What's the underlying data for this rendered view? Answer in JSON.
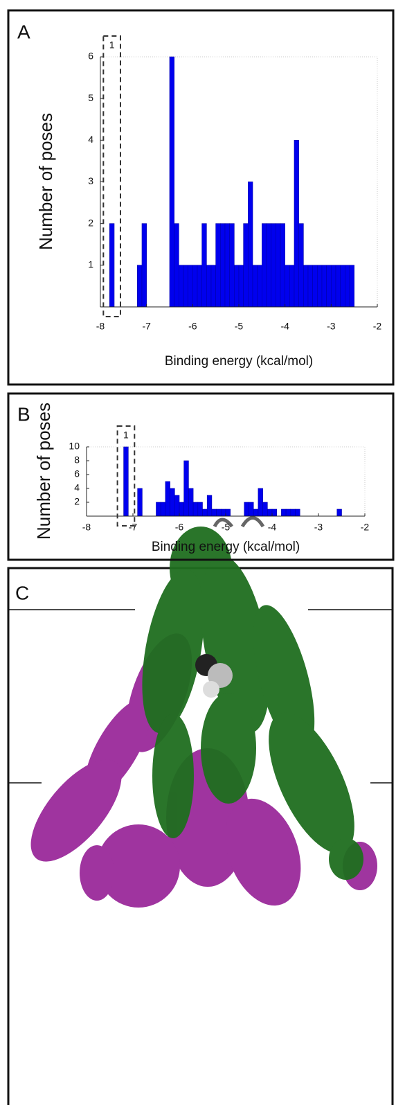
{
  "chart_data": [
    {
      "type": "histogram",
      "panel_label": "A",
      "xlabel": "Binding energy (kcal/mol)",
      "ylabel": "Number of poses",
      "annotation": "1",
      "color": "#0000ee",
      "bins": [
        -7.8,
        -7.7,
        -7.6,
        -7.5,
        -7.4,
        -7.3,
        -7.2,
        -7.1,
        -7.0,
        -6.9,
        -6.8,
        -6.7,
        -6.6,
        -6.5,
        -6.4,
        -6.3,
        -6.2,
        -6.1,
        -6.0,
        -5.9,
        -5.8,
        -5.7,
        -5.6,
        -5.5,
        -5.4,
        -5.3,
        -5.2,
        -5.1,
        -5.0,
        -4.9,
        -4.8,
        -4.7,
        -4.6,
        -4.5,
        -4.4,
        -4.3,
        -4.2,
        -4.1,
        -4.0,
        -3.9,
        -3.8,
        -3.7,
        -3.6,
        -3.5,
        -3.4,
        -3.3,
        -3.2,
        -3.1,
        -3.0,
        -2.9,
        -2.8,
        -2.7,
        -2.6,
        -2.5
      ],
      "values": [
        2,
        0,
        0,
        0,
        0,
        0,
        1,
        2,
        0,
        0,
        0,
        0,
        0,
        6,
        2,
        1,
        1,
        1,
        1,
        1,
        2,
        1,
        1,
        2,
        2,
        2,
        2,
        1,
        1,
        2,
        3,
        1,
        1,
        2,
        2,
        2,
        2,
        2,
        1,
        1,
        4,
        2,
        1,
        1,
        1,
        1,
        1,
        1,
        1,
        1,
        1,
        1,
        1
      ],
      "xlim": [
        -8,
        -2
      ],
      "xticks": [
        -8,
        -7,
        -6,
        -5,
        -4,
        -3,
        -2
      ],
      "ylim": [
        0,
        6
      ],
      "yticks": [
        1,
        2,
        3,
        4,
        5,
        6
      ]
    },
    {
      "type": "histogram",
      "panel_label": "B",
      "xlabel": "Binding energy (kcal/mol)",
      "ylabel": "Number of poses",
      "annotation": "1",
      "color": "#0000ee",
      "bins": [
        -7.2,
        -7.1,
        -7.0,
        -6.9,
        -6.8,
        -6.7,
        -6.6,
        -6.5,
        -6.4,
        -6.3,
        -6.2,
        -6.1,
        -6.0,
        -5.9,
        -5.8,
        -5.7,
        -5.6,
        -5.5,
        -5.4,
        -5.3,
        -5.2,
        -5.1,
        -5.0,
        -4.9,
        -4.8,
        -4.7,
        -4.6,
        -4.5,
        -4.4,
        -4.3,
        -4.2,
        -4.1,
        -4.0,
        -3.9,
        -3.8,
        -3.7,
        -3.6,
        -3.5,
        -3.4,
        -3.3,
        -3.2,
        -3.1,
        -3.0,
        -2.9,
        -2.8,
        -2.7,
        -2.6,
        -2.5
      ],
      "values": [
        10,
        0,
        0,
        4,
        0,
        0,
        0,
        2,
        2,
        5,
        4,
        3,
        2,
        8,
        4,
        2,
        2,
        1,
        3,
        1,
        1,
        1,
        1,
        0,
        0,
        0,
        2,
        2,
        1,
        4,
        2,
        1,
        1,
        0,
        1,
        1,
        1,
        1,
        0,
        0,
        0,
        0,
        0,
        0,
        0,
        0,
        1
      ],
      "xlim": [
        -8,
        -2
      ],
      "xticks": [
        -8,
        -7,
        -6,
        -5,
        -4,
        -3,
        -2
      ],
      "ylim": [
        0,
        10
      ],
      "yticks": [
        2,
        4,
        6,
        8,
        10
      ]
    }
  ],
  "panel_c": {
    "label": "C"
  }
}
